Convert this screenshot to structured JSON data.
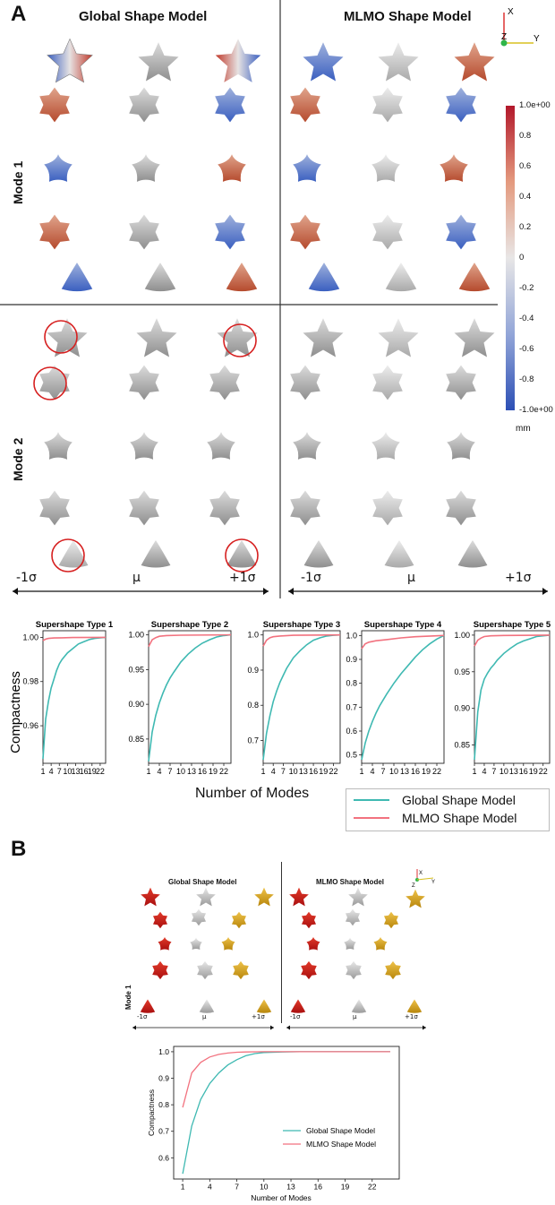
{
  "panel_a": {
    "letter": "A",
    "col_headers": [
      "Global Shape Model",
      "MLMO Shape Model"
    ],
    "row_labels": [
      "Mode 1",
      "Mode 2"
    ],
    "sigma_labels": [
      "-1σ",
      "μ",
      "+1σ"
    ],
    "axes_labels": [
      "X",
      "Z",
      "Y"
    ],
    "colorbar": {
      "ticks": [
        "1.0e+00",
        "0.8",
        "0.6",
        "0.4",
        "0.2",
        "0",
        "-0.2",
        "-0.4",
        "-0.6",
        "-0.8",
        "-1.0e+00"
      ],
      "unit": "mm",
      "colors": {
        "max": "#b2182b",
        "mid": "#e8e6e6",
        "min": "#2c4fb5"
      }
    },
    "ylabel": "Compactness",
    "xlabel": "Number of Modes",
    "legend": [
      "Global Shape Model",
      "MLMO Shape Model"
    ]
  },
  "panel_b": {
    "letter": "B",
    "col_headers": [
      "Global Shape Model",
      "MLMO Shape Model"
    ],
    "row_label": "Mode 1",
    "sigma_labels": [
      "-1σ",
      "μ",
      "+1σ"
    ],
    "axes_labels": [
      "X",
      "Z",
      "Y"
    ]
  },
  "colors": {
    "global": "#3fb9b2",
    "mlmo": "#f2727f",
    "red_shape": "#c81e1e",
    "gray_shape": "#c7c7c7",
    "yellow_shape": "#d4a417",
    "circle": "#d62020"
  },
  "chart_data": [
    {
      "type": "line",
      "title": "Supershape Type 1",
      "x_ticks": [
        "1",
        "4",
        "7",
        "10",
        "13",
        "16",
        "19",
        "22"
      ],
      "xlim": [
        1,
        24
      ],
      "ylim": [
        0.943,
        1.003
      ],
      "y_ticks": [
        0.96,
        0.98,
        1.0
      ],
      "y_tick_labels": [
        "0.96",
        "0.98",
        "1.00"
      ],
      "xlabel": "Number of Modes",
      "ylabel": "Compactness",
      "series": [
        {
          "name": "Global Shape Model",
          "x": [
            1,
            2,
            3,
            4,
            5,
            6,
            7,
            8,
            10,
            12,
            14,
            16,
            18,
            20,
            22,
            24
          ],
          "values": [
            0.945,
            0.963,
            0.971,
            0.977,
            0.981,
            0.985,
            0.988,
            0.99,
            0.993,
            0.995,
            0.997,
            0.998,
            0.999,
            0.9995,
            0.9998,
            1.0
          ]
        },
        {
          "name": "MLMO Shape Model",
          "x": [
            1,
            2,
            3,
            5,
            8,
            12,
            24
          ],
          "values": [
            0.9985,
            0.9992,
            0.9995,
            0.9997,
            0.9998,
            0.9999,
            1.0
          ]
        }
      ]
    },
    {
      "type": "line",
      "title": "Supershape Type 2",
      "x_ticks": [
        "1",
        "4",
        "7",
        "10",
        "13",
        "16",
        "19",
        "22"
      ],
      "xlim": [
        1,
        24
      ],
      "ylim": [
        0.815,
        1.006
      ],
      "y_ticks": [
        0.85,
        0.9,
        0.95,
        1.0
      ],
      "y_tick_labels": [
        "0.85",
        "0.90",
        "0.95",
        "1.00"
      ],
      "xlabel": "Number of Modes",
      "ylabel": "Compactness",
      "series": [
        {
          "name": "Global Shape Model",
          "x": [
            1,
            2,
            3,
            4,
            5,
            6,
            7,
            8,
            10,
            12,
            14,
            16,
            18,
            20,
            22,
            24
          ],
          "values": [
            0.818,
            0.86,
            0.884,
            0.902,
            0.916,
            0.928,
            0.938,
            0.946,
            0.961,
            0.972,
            0.981,
            0.988,
            0.993,
            0.997,
            0.999,
            1.0
          ]
        },
        {
          "name": "MLMO Shape Model",
          "x": [
            1,
            2,
            3,
            4,
            6,
            10,
            24
          ],
          "values": [
            0.983,
            0.993,
            0.996,
            0.998,
            0.999,
            0.9995,
            1.0
          ]
        }
      ]
    },
    {
      "type": "line",
      "title": "Supershape Type 3",
      "x_ticks": [
        "1",
        "4",
        "7",
        "10",
        "13",
        "16",
        "19",
        "22"
      ],
      "xlim": [
        1,
        24
      ],
      "ylim": [
        0.635,
        1.012
      ],
      "y_ticks": [
        0.7,
        0.8,
        0.9,
        1.0
      ],
      "y_tick_labels": [
        "0.7",
        "0.8",
        "0.9",
        "1.0"
      ],
      "xlabel": "Number of Modes",
      "ylabel": "Compactness",
      "series": [
        {
          "name": "Global Shape Model",
          "x": [
            1,
            2,
            3,
            4,
            5,
            6,
            7,
            8,
            10,
            12,
            14,
            16,
            18,
            20,
            22,
            24
          ],
          "values": [
            0.645,
            0.72,
            0.77,
            0.81,
            0.84,
            0.865,
            0.885,
            0.905,
            0.935,
            0.955,
            0.972,
            0.985,
            0.992,
            0.997,
            0.999,
            1.0
          ]
        },
        {
          "name": "MLMO Shape Model",
          "x": [
            1,
            2,
            3,
            4,
            6,
            10,
            24
          ],
          "values": [
            0.968,
            0.985,
            0.992,
            0.995,
            0.997,
            0.999,
            1.0
          ]
        }
      ]
    },
    {
      "type": "line",
      "title": "Supershape Type 4",
      "x_ticks": [
        "1",
        "4",
        "7",
        "10",
        "13",
        "16",
        "19",
        "22"
      ],
      "xlim": [
        1,
        24
      ],
      "ylim": [
        0.465,
        1.02
      ],
      "y_ticks": [
        0.5,
        0.6,
        0.7,
        0.8,
        0.9,
        1.0
      ],
      "y_tick_labels": [
        "0.5",
        "0.6",
        "0.7",
        "0.8",
        "0.9",
        "1.0"
      ],
      "xlabel": "Number of Modes",
      "ylabel": "Compactness",
      "series": [
        {
          "name": "Global Shape Model",
          "x": [
            1,
            2,
            3,
            4,
            5,
            6,
            7,
            8,
            10,
            12,
            14,
            16,
            18,
            20,
            22,
            24
          ],
          "values": [
            0.48,
            0.55,
            0.6,
            0.64,
            0.675,
            0.705,
            0.73,
            0.755,
            0.8,
            0.84,
            0.875,
            0.91,
            0.94,
            0.965,
            0.985,
            1.0
          ]
        },
        {
          "name": "MLMO Shape Model",
          "x": [
            1,
            2,
            3,
            5,
            8,
            12,
            16,
            24
          ],
          "values": [
            0.945,
            0.965,
            0.972,
            0.978,
            0.983,
            0.99,
            0.995,
            1.0
          ]
        }
      ]
    },
    {
      "type": "line",
      "title": "Supershape Type 5",
      "x_ticks": [
        "1",
        "4",
        "7",
        "10",
        "13",
        "16",
        "19",
        "22"
      ],
      "xlim": [
        1,
        24
      ],
      "ylim": [
        0.825,
        1.006
      ],
      "y_ticks": [
        0.85,
        0.9,
        0.95,
        1.0
      ],
      "y_tick_labels": [
        "0.85",
        "0.90",
        "0.95",
        "1.00"
      ],
      "xlabel": "Number of Modes",
      "ylabel": "Compactness",
      "series": [
        {
          "name": "Global Shape Model",
          "x": [
            1,
            2,
            3,
            4,
            5,
            6,
            7,
            8,
            10,
            12,
            14,
            16,
            18,
            20,
            22,
            24
          ],
          "values": [
            0.83,
            0.895,
            0.925,
            0.94,
            0.948,
            0.955,
            0.96,
            0.966,
            0.975,
            0.982,
            0.988,
            0.992,
            0.995,
            0.998,
            0.999,
            1.0
          ]
        },
        {
          "name": "MLMO Shape Model",
          "x": [
            1,
            2,
            3,
            4,
            6,
            10,
            24
          ],
          "values": [
            0.985,
            0.993,
            0.996,
            0.998,
            0.999,
            0.9995,
            1.0
          ]
        }
      ]
    },
    {
      "type": "line",
      "title": "",
      "x_ticks": [
        "1",
        "4",
        "7",
        "10",
        "13",
        "16",
        "19",
        "22"
      ],
      "xlim": [
        0,
        25
      ],
      "ylim": [
        0.52,
        1.02
      ],
      "y_ticks": [
        0.6,
        0.7,
        0.8,
        0.9,
        1.0
      ],
      "y_tick_labels": [
        "0.6",
        "0.7",
        "0.8",
        "0.9",
        "1.0"
      ],
      "xlabel": "Number of Modes",
      "ylabel": "Compactness",
      "legend": [
        "Global Shape Model",
        "MLMO Shape Model"
      ],
      "legend_position": "lower-right",
      "series": [
        {
          "name": "Global Shape Model",
          "x": [
            1,
            2,
            3,
            4,
            5,
            6,
            7,
            8,
            9,
            10,
            12,
            14,
            16,
            20,
            24
          ],
          "values": [
            0.54,
            0.72,
            0.82,
            0.88,
            0.92,
            0.95,
            0.97,
            0.985,
            0.993,
            0.997,
            0.999,
            1.0,
            1.0,
            1.0,
            1.0
          ]
        },
        {
          "name": "MLMO Shape Model",
          "x": [
            1,
            2,
            3,
            4,
            5,
            6,
            7,
            8,
            10,
            14,
            24
          ],
          "values": [
            0.79,
            0.92,
            0.96,
            0.98,
            0.99,
            0.995,
            0.998,
            0.999,
            1.0,
            1.0,
            1.0
          ]
        }
      ]
    }
  ]
}
